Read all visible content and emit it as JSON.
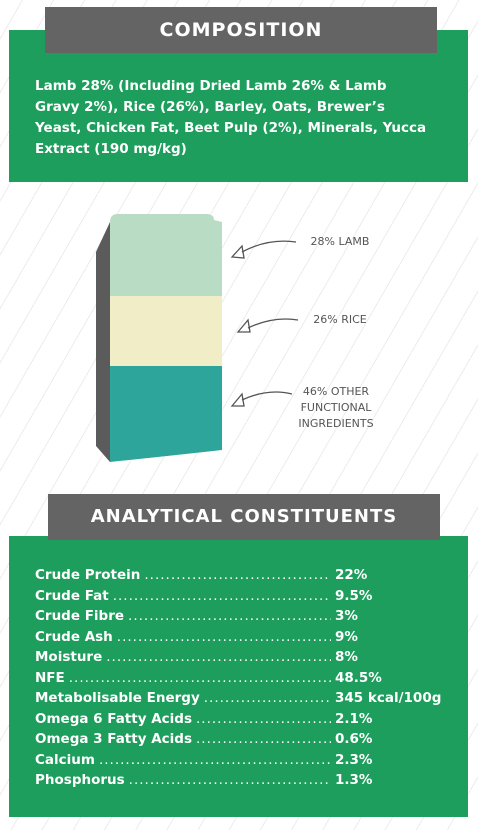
{
  "composition": {
    "title": "COMPOSITION",
    "text": "Lamb 28% (Including Dried Lamb 26% & Lamb Gravy 2%), Rice (26%), Barley, Oats, Brewer’s Yeast, Chicken Fat, Beet Pulp (2%), Minerals, Yucca Extract (190 mg/kg)"
  },
  "bag": {
    "colors": {
      "lamb": "#b8dcc4",
      "rice": "#f0edc7",
      "other": "#2ea59a",
      "side": "#5b5b5b"
    },
    "callouts": {
      "lamb": "28% LAMB",
      "rice": "26% RICE",
      "other_line1": "46% OTHER",
      "other_line2": "FUNCTIONAL",
      "other_line3": "INGREDIENTS"
    }
  },
  "analytical": {
    "title": "ANALYTICAL CONSTITUENTS",
    "rows": [
      {
        "name": "Crude Protein",
        "value": "22%"
      },
      {
        "name": "Crude Fat",
        "value": "9.5%"
      },
      {
        "name": "Crude Fibre",
        "value": "3%"
      },
      {
        "name": "Crude Ash",
        "value": "9%"
      },
      {
        "name": "Moisture",
        "value": "8%"
      },
      {
        "name": "NFE",
        "value": "48.5%"
      },
      {
        "name": "Metabolisable Energy",
        "value": "345 kcal/100g"
      },
      {
        "name": "Omega 6 Fatty Acids",
        "value": "2.1%"
      },
      {
        "name": "Omega 3 Fatty Acids",
        "value": "0.6%"
      },
      {
        "name": "Calcium",
        "value": "2.3%"
      },
      {
        "name": "Phosphorus",
        "value": "1.3%"
      }
    ]
  },
  "colors": {
    "green": "#1e9e5c",
    "header_gray": "#646464",
    "text_gray": "#555555"
  }
}
